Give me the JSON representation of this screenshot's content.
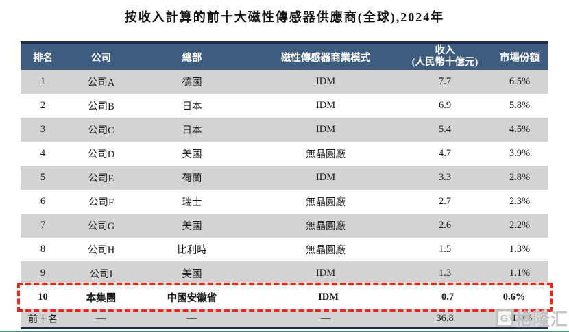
{
  "title": "按收入計算的前十大磁性傳感器供應商(全球),2024年",
  "table": {
    "columns": [
      {
        "label": "排名"
      },
      {
        "label": "公司"
      },
      {
        "label": "總部"
      },
      {
        "label": "磁性傳感器商業模式"
      },
      {
        "label": "收入",
        "sub": "(人民幣十億元)"
      },
      {
        "label": "市場份額"
      }
    ],
    "rows": [
      {
        "rank": "1",
        "company": "公司A",
        "hq": "德國",
        "model": "IDM",
        "revenue": "7.7",
        "share": "6.5%"
      },
      {
        "rank": "2",
        "company": "公司B",
        "hq": "日本",
        "model": "IDM",
        "revenue": "6.9",
        "share": "5.8%"
      },
      {
        "rank": "3",
        "company": "公司C",
        "hq": "日本",
        "model": "IDM",
        "revenue": "5.4",
        "share": "4.5%"
      },
      {
        "rank": "4",
        "company": "公司D",
        "hq": "美國",
        "model": "無晶圓廠",
        "revenue": "4.7",
        "share": "3.9%"
      },
      {
        "rank": "5",
        "company": "公司E",
        "hq": "荷蘭",
        "model": "IDM",
        "revenue": "3.3",
        "share": "2.8%"
      },
      {
        "rank": "6",
        "company": "公司F",
        "hq": "瑞士",
        "model": "無晶圓廠",
        "revenue": "2.7",
        "share": "2.3%"
      },
      {
        "rank": "7",
        "company": "公司G",
        "hq": "美國",
        "model": "無晶圓廠",
        "revenue": "2.6",
        "share": "2.2%"
      },
      {
        "rank": "8",
        "company": "公司H",
        "hq": "比利時",
        "model": "無晶圓廠",
        "revenue": "1.5",
        "share": "1.3%"
      },
      {
        "rank": "9",
        "company": "公司I",
        "hq": "美國",
        "model": "IDM",
        "revenue": "1.3",
        "share": "1.1%"
      },
      {
        "rank": "10",
        "company": "本集團",
        "hq": "中國安徽省",
        "model": "IDM",
        "revenue": "0.7",
        "share": "0.6%"
      }
    ],
    "footer": {
      "rank": "前十名",
      "company": "—",
      "hq": "—",
      "model": "—",
      "revenue": "36.8",
      "share": "31.0%"
    }
  },
  "watermark": {
    "logo_letter": "G",
    "text": "格隆汇"
  },
  "colors": {
    "header_bg": "#3e5d7e",
    "header_stripe": "#1c2d49",
    "row_alt": "#d3d3d3",
    "highlight_border": "#e7291f",
    "bottom_edge": "#4f8d7a"
  }
}
